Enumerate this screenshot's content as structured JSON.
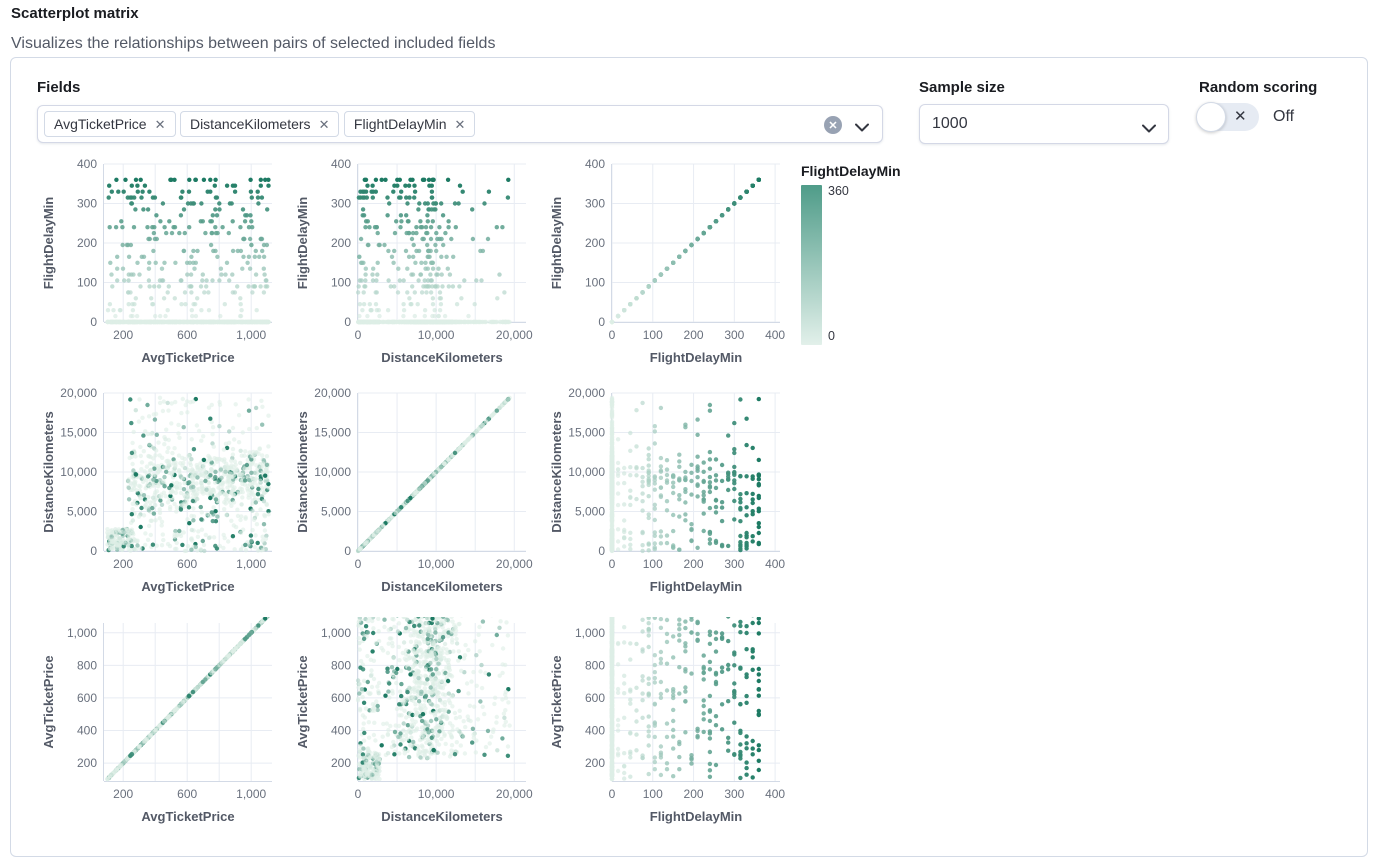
{
  "header": {
    "title": "Scatterplot matrix",
    "subtitle": "Visualizes the relationships between pairs of selected included fields"
  },
  "controls": {
    "fields": {
      "label": "Fields",
      "selected": [
        "AvgTicketPrice",
        "DistanceKilometers",
        "FlightDelayMin"
      ],
      "remove_glyph": "✕",
      "clear_icon": "x-in-circle",
      "dropdown_icon": "chevron-down"
    },
    "sample_size": {
      "label": "Sample size",
      "value": "1000"
    },
    "random_scoring": {
      "label": "Random scoring",
      "state": "Off",
      "enabled": false,
      "cross_glyph": "✕"
    }
  },
  "chart_data": {
    "type": "scatter",
    "matrix": {
      "x_order": [
        "AvgTicketPrice",
        "DistanceKilometers",
        "FlightDelayMin"
      ],
      "y_order": [
        "FlightDelayMin",
        "DistanceKilometers",
        "AvgTicketPrice"
      ]
    },
    "color_field": "FlightDelayMin",
    "legend": {
      "title": "FlightDelayMin",
      "max_label": "360",
      "min_label": "0",
      "gradient_top": "#4f9c89",
      "gradient_bottom": "#e2f0ea",
      "position": "right-of-first-row"
    },
    "point_color_low": "#ddeee6",
    "point_color_high": "#1d7a63",
    "grid_color": "#e8ecf3",
    "axis_line_color": "#d3dae6",
    "fields": {
      "AvgTicketPrice": {
        "title": "AvgTicketPrice",
        "domain": [
          90,
          1060
        ],
        "x_domain": [
          80,
          1130
        ],
        "ticks": [
          {
            "v": 200,
            "x": "200",
            "y": "200"
          },
          {
            "v": 400,
            "x": "",
            "y": "400"
          },
          {
            "v": 600,
            "x": "600",
            "y": "600"
          },
          {
            "v": 800,
            "x": "",
            "y": "800"
          },
          {
            "v": 1000,
            "x": "1,000",
            "y": "1,000"
          }
        ]
      },
      "DistanceKilometers": {
        "title": "DistanceKilometers",
        "domain": [
          0,
          20000
        ],
        "x_domain": [
          0,
          21500
        ],
        "ticks": [
          {
            "v": 0,
            "x": "0",
            "y": "0"
          },
          {
            "v": 5000,
            "x": "",
            "y": "5,000"
          },
          {
            "v": 10000,
            "x": "10,000",
            "y": "10,000"
          },
          {
            "v": 15000,
            "x": "",
            "y": "15,000"
          },
          {
            "v": 20000,
            "x": "20,000",
            "y": "20,000"
          }
        ]
      },
      "FlightDelayMin": {
        "title": "FlightDelayMin",
        "domain": [
          0,
          400
        ],
        "x_domain": [
          0,
          412
        ],
        "ticks": [
          {
            "v": 0,
            "x": "0",
            "y": "0"
          },
          {
            "v": 100,
            "x": "100",
            "y": "100"
          },
          {
            "v": 200,
            "x": "200",
            "y": "200"
          },
          {
            "v": 300,
            "x": "300",
            "y": "300"
          },
          {
            "v": 400,
            "x": "400",
            "y": "400"
          }
        ]
      }
    },
    "sampling": {
      "seed": 11,
      "n": 1000,
      "zero_delay_fraction": 0.72,
      "delay_step": 15,
      "delay_max": 360
    }
  }
}
